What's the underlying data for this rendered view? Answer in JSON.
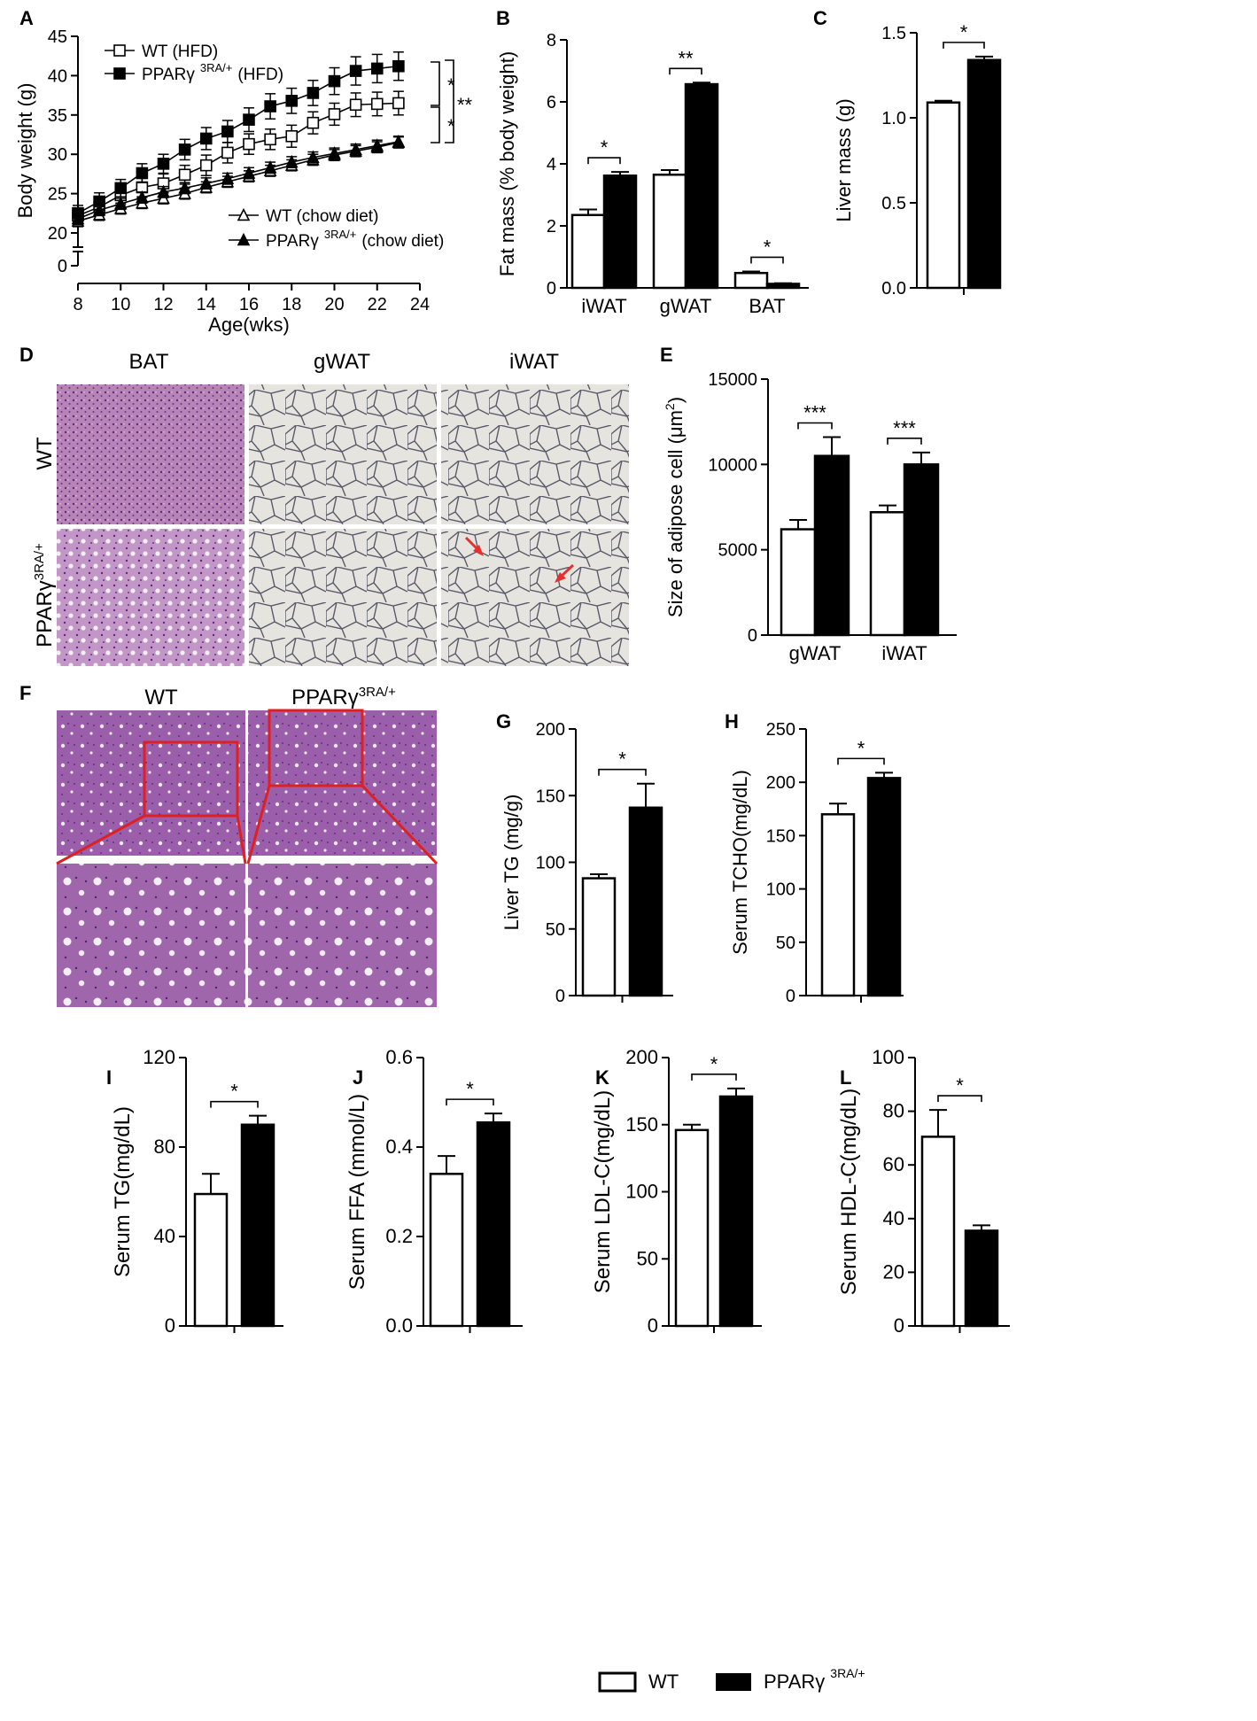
{
  "panels": {
    "A": {
      "letter": "A"
    },
    "B": {
      "letter": "B"
    },
    "C": {
      "letter": "C"
    },
    "D": {
      "letter": "D"
    },
    "E": {
      "letter": "E"
    },
    "F": {
      "letter": "F"
    },
    "G": {
      "letter": "G"
    },
    "H": {
      "letter": "H"
    },
    "I": {
      "letter": "I"
    },
    "J": {
      "letter": "J"
    },
    "K": {
      "letter": "K"
    },
    "L": {
      "letter": "L"
    }
  },
  "histology": {
    "D": {
      "col_labels": [
        "BAT",
        "gWAT",
        "iWAT"
      ],
      "row_label_wt": "WT",
      "row_label_mut": "PPARγ",
      "row_label_mut_sup": "3RA/+"
    },
    "F": {
      "col_wt": "WT",
      "col_mut": "PPARγ",
      "col_mut_sup": "3RA/+"
    }
  },
  "legend": {
    "wt": "WT",
    "mut": "PPARγ",
    "mut_sup": "3RA/+"
  },
  "colors": {
    "wt_fill": "#ffffff",
    "mut_fill": "#000000",
    "he_bat": "#b47ab4",
    "wat_bg": "#e4e2dc",
    "liver": "#9c5aa8",
    "arrow": "#e53030",
    "box": "#e02020"
  },
  "chart_data": [
    {
      "id": "A",
      "type": "line",
      "xlabel": "Age(wks)",
      "ylabel": "Body weight (g)",
      "xlim": [
        8,
        24
      ],
      "ylim": [
        0,
        45
      ],
      "xticks": [
        8,
        10,
        12,
        14,
        16,
        18,
        20,
        22,
        24
      ],
      "yticks": [
        0,
        20,
        25,
        30,
        35,
        40,
        45
      ],
      "x": [
        8,
        9,
        10,
        11,
        12,
        13,
        14,
        15,
        16,
        17,
        18,
        19,
        20,
        21,
        22,
        23
      ],
      "series": [
        {
          "name": "WT (HFD)",
          "name_sup": "",
          "marker": "open-square",
          "values": [
            22.2,
            23.3,
            24.8,
            25.8,
            26.3,
            27.4,
            28.6,
            30.2,
            31.3,
            31.9,
            32.3,
            34.0,
            35.1,
            36.3,
            36.4,
            36.5
          ],
          "err": [
            1.0,
            1.0,
            1.2,
            1.2,
            1.2,
            1.2,
            1.3,
            1.3,
            1.3,
            1.3,
            1.4,
            1.4,
            1.4,
            1.5,
            1.5,
            1.5
          ]
        },
        {
          "name": "PPARγ",
          "name_sup": "3RA/+",
          "name_suffix": "(HFD)",
          "marker": "filled-square",
          "values": [
            22.5,
            24.0,
            25.7,
            27.6,
            28.8,
            30.6,
            32.0,
            32.9,
            34.4,
            36.1,
            36.8,
            37.8,
            39.3,
            40.6,
            40.9,
            41.2
          ],
          "err": [
            1.0,
            1.1,
            1.1,
            1.2,
            1.2,
            1.3,
            1.4,
            1.4,
            1.5,
            1.6,
            1.6,
            1.6,
            1.7,
            1.8,
            1.8,
            1.8
          ]
        },
        {
          "name": "WT (chow diet)",
          "name_sup": "",
          "marker": "open-triangle",
          "values": [
            21.5,
            22.3,
            23.1,
            23.8,
            24.4,
            25.0,
            25.8,
            26.5,
            27.2,
            27.9,
            28.6,
            29.3,
            29.9,
            30.4,
            30.9,
            31.5
          ],
          "err": [
            0.7,
            0.7,
            0.7,
            0.7,
            0.7,
            0.7,
            0.7,
            0.7,
            0.7,
            0.7,
            0.7,
            0.7,
            0.7,
            0.7,
            0.7,
            0.7
          ]
        },
        {
          "name": "PPARγ",
          "name_sup": "3RA/+",
          "name_suffix": "(chow diet)",
          "marker": "filled-triangle",
          "values": [
            21.8,
            22.9,
            23.7,
            24.5,
            25.2,
            25.7,
            26.3,
            26.9,
            27.6,
            28.3,
            29.0,
            29.6,
            30.1,
            30.6,
            31.1,
            31.6
          ],
          "err": [
            0.7,
            0.7,
            0.7,
            0.7,
            0.7,
            0.7,
            0.7,
            0.7,
            0.7,
            0.7,
            0.7,
            0.7,
            0.7,
            0.7,
            0.7,
            0.7
          ]
        }
      ],
      "significance": [
        "*",
        "*",
        "**"
      ]
    },
    {
      "id": "B",
      "type": "bar",
      "ylabel": "Fat mass (% body weight)",
      "categories": [
        "iWAT",
        "gWAT",
        "BAT"
      ],
      "ylim": [
        0,
        8
      ],
      "yticks": [
        0,
        2,
        4,
        6,
        8
      ],
      "series": [
        {
          "name": "WT",
          "values": [
            2.35,
            3.65,
            0.48
          ],
          "err": [
            0.18,
            0.15,
            0.05
          ]
        },
        {
          "name": "PPARγ3RA/+",
          "values": [
            3.62,
            6.57,
            0.13
          ],
          "err": [
            0.12,
            0.05,
            0.02
          ]
        }
      ],
      "significance": [
        "*",
        "**",
        "*"
      ]
    },
    {
      "id": "C",
      "type": "bar",
      "ylabel": "Liver mass (g)",
      "ylim": [
        0,
        1.5
      ],
      "yticks": [
        "0.0",
        "0.5",
        "1.0",
        "1.5"
      ],
      "series": [
        {
          "name": "WT",
          "values": [
            1.09
          ],
          "err": [
            0.01
          ]
        },
        {
          "name": "PPARγ3RA/+",
          "values": [
            1.34
          ],
          "err": [
            0.02
          ]
        }
      ],
      "significance": [
        "*"
      ]
    },
    {
      "id": "E",
      "type": "bar",
      "ylabel": "Size of adipose cell (μm",
      "ylabel_sup": "2",
      "ylabel_end": ")",
      "categories": [
        "gWAT",
        "iWAT"
      ],
      "ylim": [
        0,
        15000
      ],
      "yticks": [
        0,
        5000,
        10000,
        15000
      ],
      "series": [
        {
          "name": "WT",
          "values": [
            6200,
            7200
          ],
          "err": [
            550,
            400
          ]
        },
        {
          "name": "PPARγ3RA/+",
          "values": [
            10500,
            10000
          ],
          "err": [
            1100,
            700
          ]
        }
      ],
      "significance": [
        "***",
        "***"
      ]
    },
    {
      "id": "G",
      "type": "bar",
      "ylabel": "Liver TG (mg/g)",
      "ylim": [
        0,
        200
      ],
      "yticks": [
        0,
        50,
        100,
        150,
        200
      ],
      "series": [
        {
          "name": "WT",
          "values": [
            88
          ],
          "err": [
            3
          ]
        },
        {
          "name": "PPARγ3RA/+",
          "values": [
            141
          ],
          "err": [
            18
          ]
        }
      ],
      "significance": [
        "*"
      ]
    },
    {
      "id": "H",
      "type": "bar",
      "ylabel": "Serum TCHO(mg/dL)",
      "ylim": [
        0,
        250
      ],
      "yticks": [
        0,
        50,
        100,
        150,
        200,
        250
      ],
      "series": [
        {
          "name": "WT",
          "values": [
            170
          ],
          "err": [
            10
          ]
        },
        {
          "name": "PPARγ3RA/+",
          "values": [
            204
          ],
          "err": [
            5
          ]
        }
      ],
      "significance": [
        "*"
      ]
    },
    {
      "id": "I",
      "type": "bar",
      "ylabel": "Serum TG(mg/dL)",
      "ylim": [
        0,
        120
      ],
      "yticks": [
        0,
        40,
        80,
        120
      ],
      "series": [
        {
          "name": "WT",
          "values": [
            59
          ],
          "err": [
            9
          ]
        },
        {
          "name": "PPARγ3RA/+",
          "values": [
            90
          ],
          "err": [
            4
          ]
        }
      ],
      "significance": [
        "*"
      ]
    },
    {
      "id": "J",
      "type": "bar",
      "ylabel": "Serum FFA (mmol/L)",
      "ylim": [
        0,
        0.6
      ],
      "yticks": [
        "0.0",
        "0.2",
        "0.4",
        "0.6"
      ],
      "series": [
        {
          "name": "WT",
          "values": [
            0.34
          ],
          "err": [
            0.04
          ]
        },
        {
          "name": "PPARγ3RA/+",
          "values": [
            0.455
          ],
          "err": [
            0.02
          ]
        }
      ],
      "significance": [
        "*"
      ]
    },
    {
      "id": "K",
      "type": "bar",
      "ylabel": "Serum LDL-C(mg/dL)",
      "ylim": [
        0,
        200
      ],
      "yticks": [
        0,
        50,
        100,
        150,
        200
      ],
      "series": [
        {
          "name": "WT",
          "values": [
            146
          ],
          "err": [
            4
          ]
        },
        {
          "name": "PPARγ3RA/+",
          "values": [
            171
          ],
          "err": [
            6
          ]
        }
      ],
      "significance": [
        "*"
      ]
    },
    {
      "id": "L",
      "type": "bar",
      "ylabel": "Serum HDL-C(mg/dL)",
      "ylim": [
        0,
        100
      ],
      "yticks": [
        0,
        20,
        40,
        60,
        80,
        100
      ],
      "series": [
        {
          "name": "WT",
          "values": [
            70.5
          ],
          "err": [
            10
          ]
        },
        {
          "name": "PPARγ3RA/+",
          "values": [
            35.5
          ],
          "err": [
            2
          ]
        }
      ],
      "significance": [
        "*"
      ]
    }
  ]
}
